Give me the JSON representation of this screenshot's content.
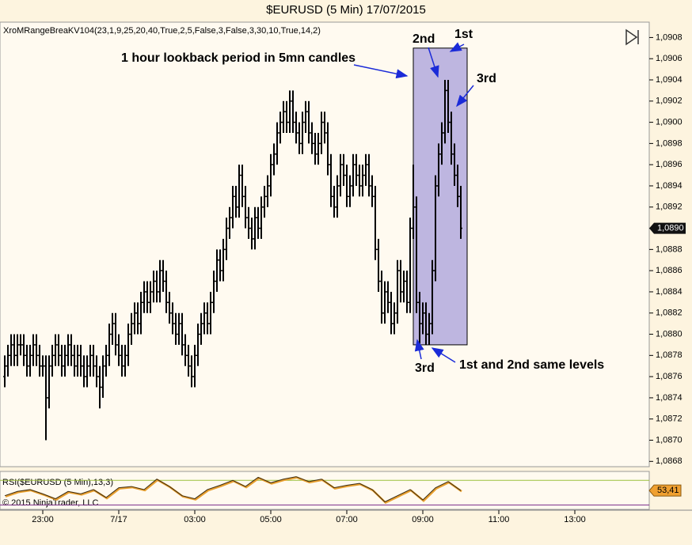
{
  "chart_data": {
    "type": "ohlc",
    "title": "$EURUSD (5 Min)  17/07/2015",
    "indicator_label": "XroMRangeBreaKV104(23,1,9,25,20,40,True,2,5,False,3,False,3,30,10,True,14,2)",
    "copyright": "© 2015 NinjaTrader, LLC",
    "color": "#000000",
    "xlim": [
      -1,
      203.5
    ],
    "xticks": [
      {
        "value": 12,
        "label": "23:00"
      },
      {
        "value": 36,
        "label": "7/17"
      },
      {
        "value": 60,
        "label": "03:00"
      },
      {
        "value": 84,
        "label": "05:00"
      },
      {
        "value": 108,
        "label": "07:00"
      },
      {
        "value": 132,
        "label": "09:00"
      },
      {
        "value": 156,
        "label": "11:00"
      },
      {
        "value": 180,
        "label": "13:00"
      }
    ],
    "ylim": [
      1.08675,
      1.09093
    ],
    "yticks": [
      {
        "value": 1.0868,
        "label": "1,0868"
      },
      {
        "value": 1.087,
        "label": "1,0870"
      },
      {
        "value": 1.0872,
        "label": "1,0872"
      },
      {
        "value": 1.0874,
        "label": "1,0874"
      },
      {
        "value": 1.0876,
        "label": "1,0876"
      },
      {
        "value": 1.0878,
        "label": "1,0878"
      },
      {
        "value": 1.088,
        "label": "1,0880"
      },
      {
        "value": 1.0882,
        "label": "1,0882"
      },
      {
        "value": 1.0884,
        "label": "1,0884"
      },
      {
        "value": 1.0886,
        "label": "1,0886"
      },
      {
        "value": 1.0888,
        "label": "1,0888"
      },
      {
        "value": 1.089,
        "label": "1,0890"
      },
      {
        "value": 1.0892,
        "label": "1,0892"
      },
      {
        "value": 1.0894,
        "label": "1,0894"
      },
      {
        "value": 1.0896,
        "label": "1,0896"
      },
      {
        "value": 1.0898,
        "label": "1,0898"
      },
      {
        "value": 1.09,
        "label": "1,0900"
      },
      {
        "value": 1.0902,
        "label": "1,0902"
      },
      {
        "value": 1.0904,
        "label": "1,0904"
      },
      {
        "value": 1.0906,
        "label": "1,0906"
      },
      {
        "value": 1.0908,
        "label": "1,0908"
      }
    ],
    "open": [
      1.0876,
      1.0877,
      1.0878,
      1.0879,
      1.0878,
      1.0879,
      1.0879,
      1.0878,
      1.0877,
      1.0878,
      1.0879,
      1.0878,
      1.0877,
      1.0877,
      1.0874,
      1.0877,
      1.0878,
      1.0879,
      1.0878,
      1.0877,
      1.0878,
      1.0879,
      1.0878,
      1.0877,
      1.0878,
      1.0877,
      1.0876,
      1.0877,
      1.0878,
      1.0877,
      1.0876,
      1.0875,
      1.0877,
      1.0878,
      1.088,
      1.0881,
      1.0879,
      1.0878,
      1.0877,
      1.0878,
      1.088,
      1.0881,
      1.0882,
      1.0881,
      1.0883,
      1.0884,
      1.0883,
      1.0884,
      1.0885,
      1.0884,
      1.0886,
      1.0885,
      1.0883,
      1.0882,
      1.0881,
      1.088,
      1.0881,
      1.0879,
      1.0878,
      1.0877,
      1.0876,
      1.0878,
      1.088,
      1.0881,
      1.0882,
      1.0881,
      1.0883,
      1.0885,
      1.0887,
      1.0886,
      1.0888,
      1.089,
      1.0891,
      1.0893,
      1.0892,
      1.0895,
      1.0893,
      1.0891,
      1.089,
      1.0889,
      1.0891,
      1.089,
      1.0892,
      1.0893,
      1.0894,
      1.0896,
      1.0897,
      1.0899,
      1.09,
      1.0901,
      1.09,
      1.0902,
      1.09,
      1.0899,
      1.0898,
      1.09,
      1.0901,
      1.0899,
      1.0898,
      1.0897,
      1.0898,
      1.09,
      1.0899,
      1.0896,
      1.0893,
      1.0892,
      1.0894,
      1.0896,
      1.0895,
      1.0893,
      1.0894,
      1.0896,
      1.0895,
      1.0894,
      1.0895,
      1.0896,
      1.0894,
      1.0893,
      1.0888,
      1.0885,
      1.0882,
      1.0884,
      1.0883,
      1.0881,
      1.0882,
      1.0886,
      1.0884,
      1.0885,
      1.0883,
      1.089,
      1.0892,
      1.0883,
      1.0881,
      1.0882,
      1.088,
      1.0881,
      1.0886,
      1.0894,
      1.0897,
      1.0899,
      1.0903,
      1.09,
      1.0897,
      1.0895,
      1.0893
    ],
    "high": [
      1.0878,
      1.0879,
      1.088,
      1.088,
      1.088,
      1.088,
      1.088,
      1.0879,
      1.0879,
      1.088,
      1.088,
      1.0879,
      1.0878,
      1.0878,
      1.0878,
      1.0879,
      1.088,
      1.088,
      1.0879,
      1.0879,
      1.088,
      1.088,
      1.0879,
      1.0879,
      1.0879,
      1.0878,
      1.0878,
      1.0879,
      1.0879,
      1.0878,
      1.0877,
      1.0878,
      1.0879,
      1.0881,
      1.0882,
      1.0882,
      1.088,
      1.0879,
      1.0879,
      1.0881,
      1.0882,
      1.0883,
      1.0883,
      1.0884,
      1.0885,
      1.0885,
      1.0885,
      1.0886,
      1.0886,
      1.0887,
      1.0887,
      1.0886,
      1.0884,
      1.0883,
      1.0882,
      1.0882,
      1.0882,
      1.088,
      1.0879,
      1.0878,
      1.0879,
      1.0881,
      1.0882,
      1.0883,
      1.0883,
      1.0884,
      1.0886,
      1.0888,
      1.0888,
      1.0889,
      1.0891,
      1.0892,
      1.0894,
      1.0894,
      1.0896,
      1.0896,
      1.0894,
      1.0892,
      1.0891,
      1.0892,
      1.0892,
      1.0893,
      1.0894,
      1.0895,
      1.0897,
      1.0898,
      1.09,
      1.0901,
      1.0902,
      1.0902,
      1.0903,
      1.0903,
      1.0901,
      1.09,
      1.0901,
      1.0902,
      1.0902,
      1.09,
      1.0899,
      1.0899,
      1.0901,
      1.0901,
      1.09,
      1.0897,
      1.0894,
      1.0895,
      1.0897,
      1.0897,
      1.0896,
      1.0895,
      1.0897,
      1.0897,
      1.0896,
      1.0896,
      1.0897,
      1.0897,
      1.0895,
      1.0894,
      1.0889,
      1.0886,
      1.0885,
      1.0885,
      1.0884,
      1.0883,
      1.0887,
      1.0887,
      1.0886,
      1.0886,
      1.0891,
      1.0896,
      1.0893,
      1.0884,
      1.0883,
      1.0883,
      1.0882,
      1.0887,
      1.0895,
      1.0898,
      1.09,
      1.0904,
      1.0904,
      1.0901,
      1.0898,
      1.0896,
      1.0894
    ],
    "low": [
      1.0875,
      1.0876,
      1.0877,
      1.0877,
      1.0877,
      1.0878,
      1.0877,
      1.0876,
      1.0876,
      1.0877,
      1.0877,
      1.0876,
      1.0876,
      1.087,
      1.0873,
      1.0876,
      1.0877,
      1.0877,
      1.0876,
      1.0876,
      1.0877,
      1.0877,
      1.0876,
      1.0876,
      1.0876,
      1.0875,
      1.0875,
      1.0876,
      1.0876,
      1.0875,
      1.0873,
      1.0874,
      1.0876,
      1.0877,
      1.0879,
      1.0878,
      1.0877,
      1.0876,
      1.0876,
      1.0877,
      1.0879,
      1.088,
      1.088,
      1.088,
      1.0882,
      1.0882,
      1.0882,
      1.0883,
      1.0883,
      1.0883,
      1.0884,
      1.0882,
      1.0881,
      1.088,
      1.0879,
      1.0879,
      1.0878,
      1.0877,
      1.0876,
      1.0875,
      1.0875,
      1.0877,
      1.0879,
      1.088,
      1.088,
      1.088,
      1.0882,
      1.0884,
      1.0885,
      1.0885,
      1.0887,
      1.0889,
      1.089,
      1.0891,
      1.0891,
      1.0892,
      1.089,
      1.0889,
      1.0888,
      1.0888,
      1.0889,
      1.0889,
      1.0891,
      1.0892,
      1.0893,
      1.0895,
      1.0896,
      1.0898,
      1.0899,
      1.0899,
      1.0899,
      1.0899,
      1.0898,
      1.0897,
      1.0897,
      1.0899,
      1.0898,
      1.0897,
      1.0896,
      1.0896,
      1.0897,
      1.0898,
      1.0895,
      1.0892,
      1.0891,
      1.0891,
      1.0893,
      1.0894,
      1.0892,
      1.0892,
      1.0893,
      1.0894,
      1.0893,
      1.0893,
      1.0894,
      1.0893,
      1.0892,
      1.0887,
      1.0884,
      1.0881,
      1.0881,
      1.0882,
      1.088,
      1.088,
      1.0881,
      1.0883,
      1.0883,
      1.0882,
      1.0882,
      1.0889,
      1.0882,
      1.0879,
      1.088,
      1.0879,
      1.0879,
      1.088,
      1.0885,
      1.0893,
      1.0896,
      1.0898,
      1.0899,
      1.0896,
      1.0894,
      1.0892,
      1.0889
    ],
    "close": [
      1.0877,
      1.0878,
      1.0879,
      1.0878,
      1.0879,
      1.0879,
      1.0878,
      1.0877,
      1.0878,
      1.0879,
      1.0878,
      1.0877,
      1.0877,
      1.0874,
      1.0877,
      1.0878,
      1.0879,
      1.0878,
      1.0877,
      1.0878,
      1.0879,
      1.0878,
      1.0877,
      1.0878,
      1.0877,
      1.0876,
      1.0877,
      1.0878,
      1.0877,
      1.0876,
      1.0875,
      1.0877,
      1.0878,
      1.088,
      1.0881,
      1.0879,
      1.0878,
      1.0877,
      1.0878,
      1.088,
      1.0881,
      1.0882,
      1.0881,
      1.0883,
      1.0884,
      1.0883,
      1.0884,
      1.0885,
      1.0884,
      1.0886,
      1.0885,
      1.0883,
      1.0882,
      1.0881,
      1.088,
      1.0881,
      1.0879,
      1.0878,
      1.0877,
      1.0876,
      1.0878,
      1.088,
      1.0881,
      1.0882,
      1.0881,
      1.0883,
      1.0885,
      1.0887,
      1.0886,
      1.0888,
      1.089,
      1.0891,
      1.0893,
      1.0892,
      1.0895,
      1.0893,
      1.0891,
      1.089,
      1.0889,
      1.0891,
      1.089,
      1.0892,
      1.0893,
      1.0894,
      1.0896,
      1.0897,
      1.0899,
      1.09,
      1.0901,
      1.09,
      1.0902,
      1.09,
      1.0899,
      1.0898,
      1.09,
      1.0901,
      1.0899,
      1.0898,
      1.0897,
      1.0898,
      1.09,
      1.0899,
      1.0896,
      1.0893,
      1.0892,
      1.0894,
      1.0896,
      1.0895,
      1.0893,
      1.0894,
      1.0896,
      1.0895,
      1.0894,
      1.0895,
      1.0896,
      1.0894,
      1.0893,
      1.0888,
      1.0885,
      1.0882,
      1.0884,
      1.0883,
      1.0881,
      1.0882,
      1.0886,
      1.0884,
      1.0885,
      1.0883,
      1.089,
      1.0892,
      1.0883,
      1.0881,
      1.0882,
      1.088,
      1.0881,
      1.0886,
      1.0894,
      1.0897,
      1.0899,
      1.0903,
      1.09,
      1.0897,
      1.0895,
      1.0893,
      1.089
    ],
    "last_price": {
      "value": 1.089,
      "label": "1,0890"
    },
    "highlight_box": {
      "x0": 129,
      "x1": 146,
      "high": 1.0907,
      "low": 1.0879
    },
    "annotations": [
      "1 hour lookback period in 5mn candles",
      "2nd",
      "1st",
      "3rd",
      "3rd",
      "1st and 2nd same levels"
    ],
    "rsi": {
      "label": "RSI($EURUSD (5 Min),13,3)",
      "color": "#3a2a10",
      "ylim": [
        24,
        82
      ],
      "levels": [
        70,
        30
      ],
      "level_colors": [
        "#9bbf3c",
        "#7a2a8a"
      ],
      "x": [
        0,
        4,
        8,
        12,
        16,
        20,
        24,
        28,
        32,
        36,
        40,
        44,
        48,
        52,
        56,
        60,
        64,
        68,
        72,
        76,
        80,
        84,
        88,
        92,
        96,
        100,
        104,
        108,
        112,
        116,
        120,
        124,
        128,
        132,
        136,
        140,
        144
      ],
      "values": [
        45,
        52,
        55,
        48,
        40,
        52,
        48,
        55,
        42,
        58,
        60,
        55,
        72,
        60,
        45,
        40,
        55,
        62,
        70,
        60,
        75,
        66,
        72,
        76,
        68,
        72,
        58,
        62,
        65,
        55,
        35,
        45,
        55,
        38,
        58,
        68,
        53.41
      ],
      "last": {
        "value": 53.41,
        "label": "53,41"
      }
    }
  }
}
